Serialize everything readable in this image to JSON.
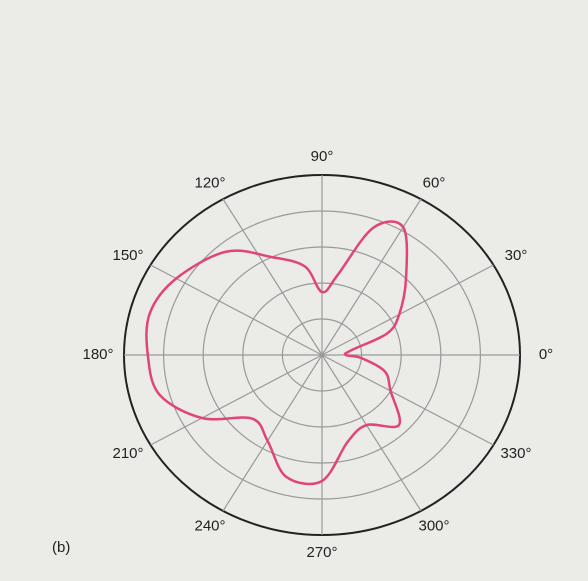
{
  "chart_data": {
    "type": "polar",
    "caption": "(b)",
    "x": [
      0,
      10,
      20,
      30,
      45,
      60,
      70,
      80,
      90,
      100,
      115,
      130,
      150,
      165,
      180,
      195,
      210,
      225,
      240,
      255,
      270,
      285,
      300,
      315,
      330,
      344,
      355
    ],
    "values": [
      0.12,
      0.15,
      0.35,
      0.45,
      0.6,
      0.82,
      0.75,
      0.45,
      0.35,
      0.5,
      0.6,
      0.75,
      0.85,
      0.9,
      0.88,
      0.85,
      0.7,
      0.5,
      0.55,
      0.7,
      0.7,
      0.5,
      0.45,
      0.55,
      0.4,
      0.33,
      0.2
    ],
    "color": "#e0457a",
    "rlim": [
      0,
      1
    ],
    "rticks": [
      0.2,
      0.4,
      0.6,
      0.8,
      1
    ],
    "xticks": [
      {
        "value": 0,
        "label": "0°"
      },
      {
        "value": 30,
        "label": "30°"
      },
      {
        "value": 60,
        "label": "60°"
      },
      {
        "value": 90,
        "label": "90°"
      },
      {
        "value": 120,
        "label": "120°"
      },
      {
        "value": 150,
        "label": "150°"
      },
      {
        "value": 180,
        "label": "180°"
      },
      {
        "value": 210,
        "label": "210°"
      },
      {
        "value": 240,
        "label": "240°"
      },
      {
        "value": 270,
        "label": "270°"
      },
      {
        "value": 300,
        "label": "300°"
      },
      {
        "value": 330,
        "label": "330°"
      }
    ],
    "grid": true
  }
}
